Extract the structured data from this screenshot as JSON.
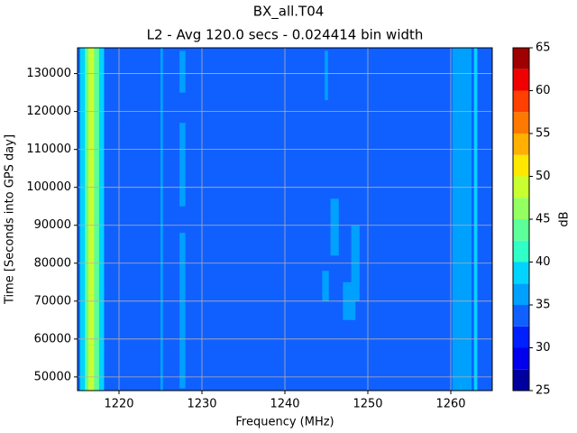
{
  "chart_data": {
    "type": "heatmap",
    "title": "BX_all.T04",
    "subtitle": "L2 - Avg 120.0 secs - 0.024414 bin width",
    "x_label": "Frequency (MHz)",
    "y_label": "Time [Seconds into GPS day]",
    "colorbar_label": "dB",
    "xlim": [
      1215,
      1265
    ],
    "ylim": [
      46400,
      136800
    ],
    "xticks": [
      1220,
      1230,
      1240,
      1250,
      1260
    ],
    "yticks": [
      50000,
      60000,
      70000,
      80000,
      90000,
      100000,
      110000,
      120000,
      130000
    ],
    "grid": true,
    "levels": [
      25,
      27.5,
      30,
      32.5,
      35,
      37.5,
      40,
      42.5,
      45,
      47.5,
      50,
      52.5,
      55,
      57.5,
      60,
      62.5,
      65
    ],
    "level_colors": [
      "#00009f",
      "#0000ee",
      "#0020ff",
      "#1060ff",
      "#00a0ff",
      "#00d4ff",
      "#30ffc8",
      "#5cff9a",
      "#94ff60",
      "#c8ff30",
      "#ffe800",
      "#ffb000",
      "#ff7800",
      "#ff4000",
      "#f00000",
      "#a00000"
    ],
    "colorbar_ticks": [
      25,
      30,
      35,
      40,
      45,
      50,
      55,
      60,
      65
    ],
    "background": 34,
    "regions": [
      {
        "x": [
          1215.3,
          1218.2
        ],
        "y": [
          46400,
          136800
        ],
        "value": 38.75
      },
      {
        "x": [
          1215.9,
          1217.6
        ],
        "y": [
          46400,
          136800
        ],
        "value": 43.75
      },
      {
        "x": [
          1216.3,
          1217.0
        ],
        "y": [
          46400,
          136800
        ],
        "value": 48.75
      },
      {
        "x": [
          1225.0,
          1225.3
        ],
        "y": [
          46400,
          136800
        ],
        "value": 36.25
      },
      {
        "x": [
          1227.3,
          1228.0
        ],
        "y": [
          125000,
          136000
        ],
        "value": 36.25
      },
      {
        "x": [
          1227.3,
          1228.0
        ],
        "y": [
          95000,
          117000
        ],
        "value": 36.25
      },
      {
        "x": [
          1227.3,
          1228.0
        ],
        "y": [
          47000,
          88000
        ],
        "value": 36.25
      },
      {
        "x": [
          1260.2,
          1262.5
        ],
        "y": [
          46400,
          136800
        ],
        "value": 36.25
      },
      {
        "x": [
          1262.8,
          1263.2
        ],
        "y": [
          46400,
          136800
        ],
        "value": 38.75
      },
      {
        "x": [
          1248.0,
          1249.0
        ],
        "y": [
          70000,
          90000
        ],
        "value": 36.25
      },
      {
        "x": [
          1244.5,
          1245.3
        ],
        "y": [
          70000,
          78000
        ],
        "value": 36.25
      },
      {
        "x": [
          1245.5,
          1246.5
        ],
        "y": [
          82000,
          97000
        ],
        "value": 36.25
      },
      {
        "x": [
          1247.0,
          1248.5
        ],
        "y": [
          65000,
          75000
        ],
        "value": 36.25
      },
      {
        "x": [
          1244.8,
          1245.2
        ],
        "y": [
          123000,
          136000
        ],
        "value": 36.25
      }
    ]
  }
}
